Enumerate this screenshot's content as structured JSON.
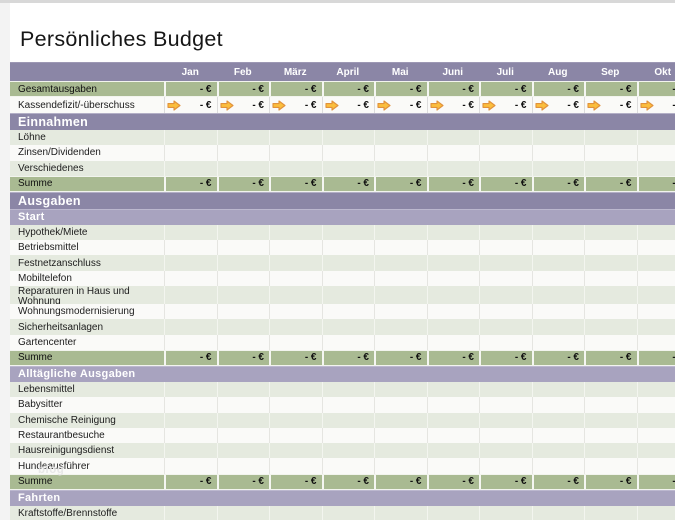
{
  "page": {
    "title": "Persönliches Budget"
  },
  "watermark": "blog",
  "colors": {
    "header_purple": "#8b86a6",
    "subheader_purple": "#a8a3bf",
    "summary_green": "#a9ba92",
    "row_tint": "#e5eadf",
    "row_white": "#fafaf8",
    "arrow_fill": "#fbbe3c",
    "arrow_stroke": "#e0913c"
  },
  "table": {
    "months": [
      "Jan",
      "Feb",
      "März",
      "April",
      "Mai",
      "Juni",
      "Juli",
      "Aug",
      "Sep",
      "Okt"
    ],
    "empty_value": "- €",
    "rows": [
      {
        "type": "total",
        "label": "Gesamtausgaben"
      },
      {
        "type": "indicator",
        "label": "Kassendefizit/-überschuss",
        "icon": "right-arrow"
      },
      {
        "type": "section",
        "label": "Einnahmen"
      },
      {
        "type": "item",
        "label": "Löhne",
        "stripe": "tint"
      },
      {
        "type": "item",
        "label": "Zinsen/Dividenden",
        "stripe": "white"
      },
      {
        "type": "item",
        "label": "Verschiedenes",
        "stripe": "tint"
      },
      {
        "type": "total",
        "label": "Summe"
      },
      {
        "type": "section",
        "label": "Ausgaben"
      },
      {
        "type": "subsection",
        "label": "Start"
      },
      {
        "type": "item",
        "label": "Hypothek/Miete",
        "stripe": "tint"
      },
      {
        "type": "item",
        "label": "Betriebsmittel",
        "stripe": "white"
      },
      {
        "type": "item",
        "label": "Festnetzanschluss",
        "stripe": "tint"
      },
      {
        "type": "item",
        "label": "Mobiltelefon",
        "stripe": "white"
      },
      {
        "type": "item-tall",
        "label": "Reparaturen in Haus und Wohnung",
        "stripe": "tint"
      },
      {
        "type": "item",
        "label": "Wohnungsmodernisierung",
        "stripe": "white"
      },
      {
        "type": "item",
        "label": "Sicherheitsanlagen",
        "stripe": "tint"
      },
      {
        "type": "item",
        "label": "Gartencenter",
        "stripe": "white"
      },
      {
        "type": "total",
        "label": "Summe"
      },
      {
        "type": "subsection",
        "label": "Alltägliche Ausgaben"
      },
      {
        "type": "item",
        "label": "Lebensmittel",
        "stripe": "tint"
      },
      {
        "type": "item",
        "label": "Babysitter",
        "stripe": "white"
      },
      {
        "type": "item",
        "label": "Chemische Reinigung",
        "stripe": "tint"
      },
      {
        "type": "item",
        "label": "Restaurantbesuche",
        "stripe": "white"
      },
      {
        "type": "item",
        "label": "Hausreinigungsdienst",
        "stripe": "tint"
      },
      {
        "type": "item",
        "label": "Hundeausführer",
        "stripe": "white"
      },
      {
        "type": "total",
        "label": "Summe"
      },
      {
        "type": "subsection",
        "label": "Fahrten"
      },
      {
        "type": "item",
        "label": "Kraftstoffe/Brennstoffe",
        "stripe": "tint"
      }
    ]
  }
}
